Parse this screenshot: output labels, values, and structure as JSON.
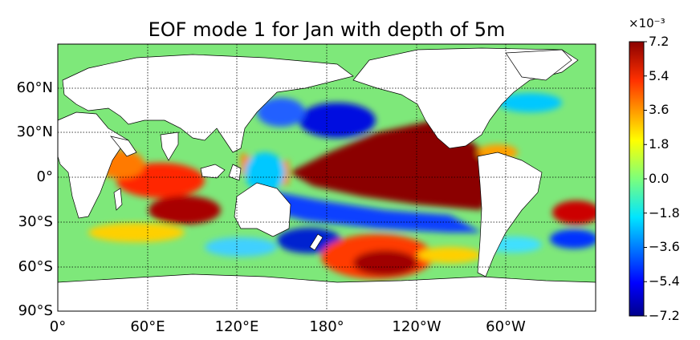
{
  "title": "EOF mode 1 for Jan with depth of 5m",
  "lat_labels": [
    "60°N",
    "30°N",
    "0°",
    "30°S",
    "60°S",
    "90°S"
  ],
  "lon_labels": [
    "0°",
    "60°E",
    "120°E",
    "180°",
    "120°W",
    "60°W"
  ],
  "colorbar": {
    "exponent": "×10⁻³",
    "ticks": [
      "7.2",
      "5.4",
      "3.6",
      "1.8",
      "0.0",
      "−1.8",
      "−3.6",
      "−5.4",
      "−7.2"
    ],
    "vmin": -7.2,
    "vmax": 7.2,
    "colormap": "jet"
  },
  "colors": {
    "ocean_background": "#7ee87a",
    "land": "#ffffff",
    "coast": "#000000",
    "grid": "#000000"
  }
}
